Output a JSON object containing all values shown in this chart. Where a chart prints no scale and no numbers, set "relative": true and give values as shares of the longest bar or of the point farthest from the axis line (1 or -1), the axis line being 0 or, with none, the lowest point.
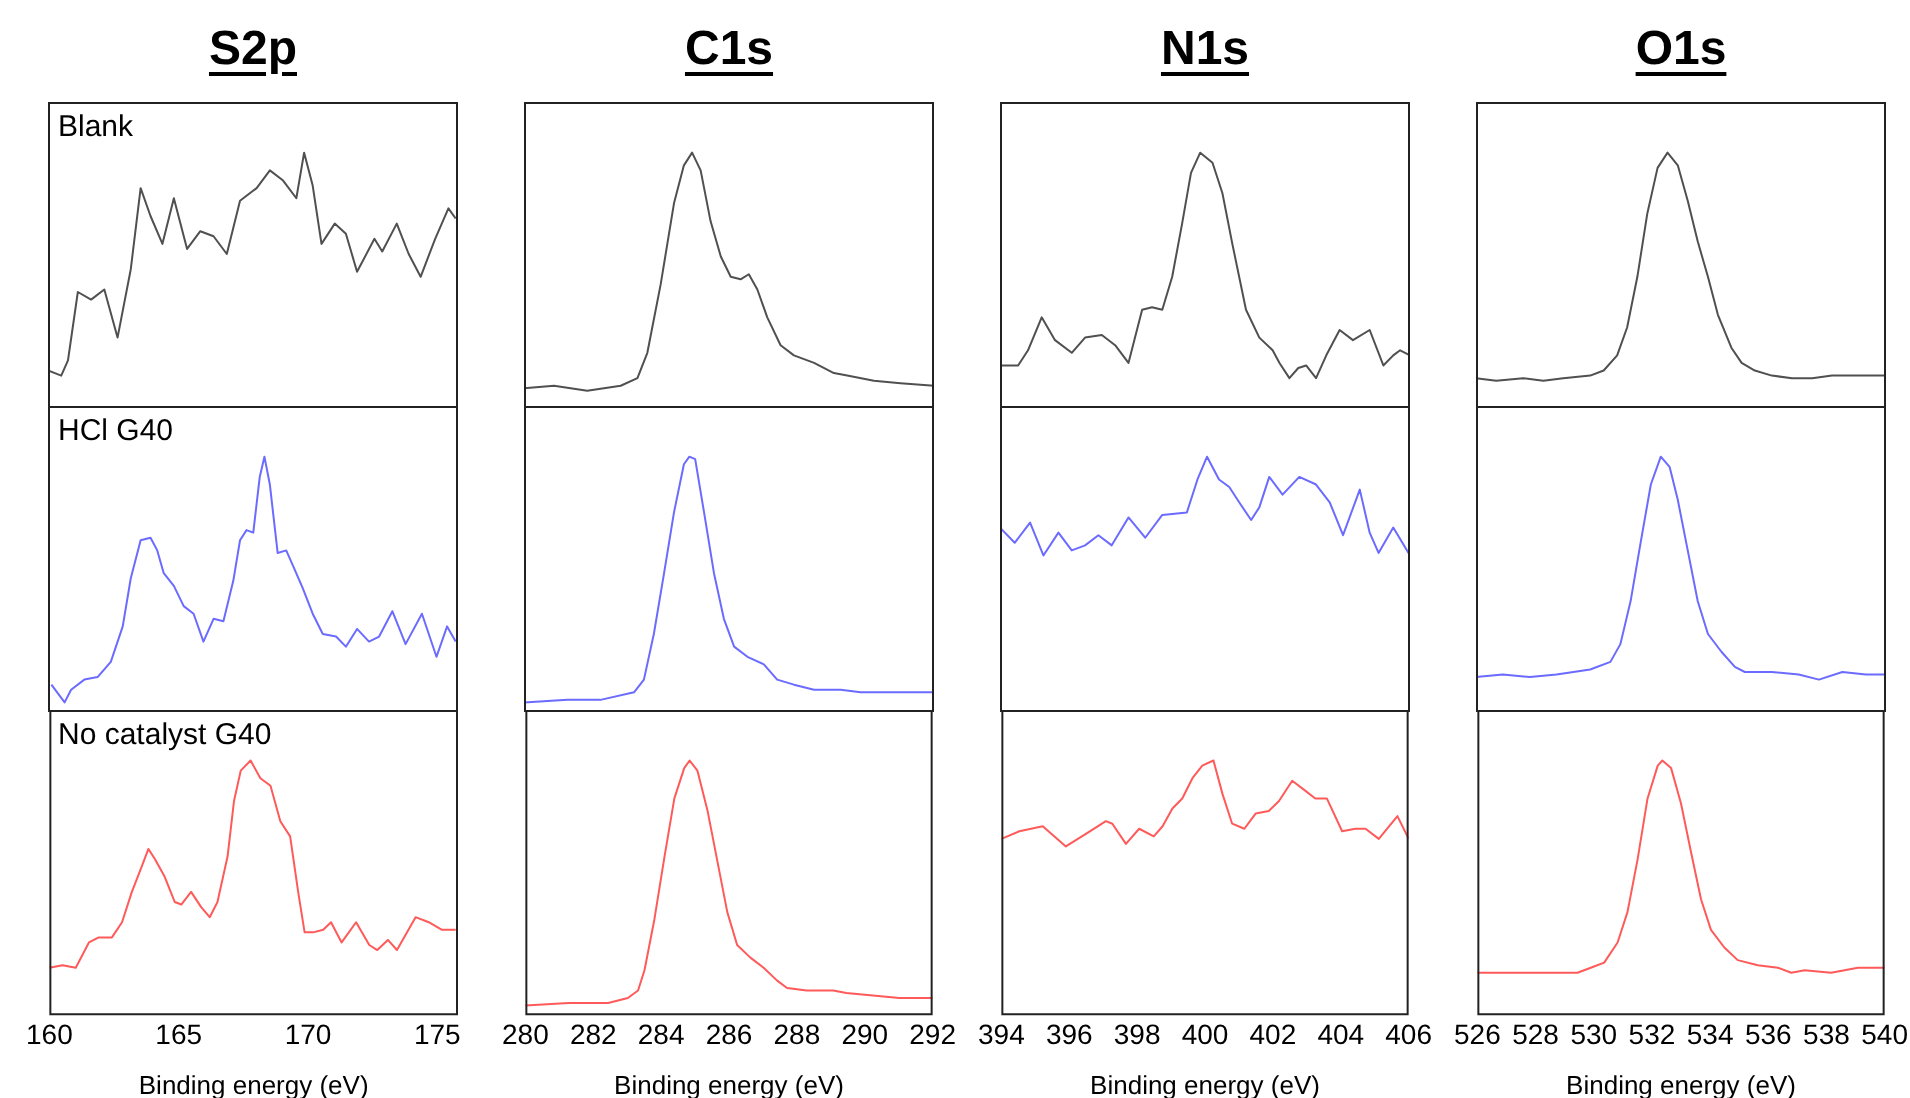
{
  "chart_data": [
    {
      "type": "line",
      "title": "S2p",
      "annotations": [
        "Blank"
      ],
      "relative": true,
      "marker": "none",
      "tick_labels": false,
      "xlim": [
        160,
        175.8
      ],
      "x": [
        160.0,
        160.51,
        160.77,
        161.15,
        161.66,
        162.17,
        162.68,
        163.19,
        163.57,
        163.95,
        164.41,
        164.85,
        165.36,
        165.87,
        166.38,
        166.89,
        167.4,
        168.04,
        168.55,
        169.06,
        169.57,
        169.87,
        170.2,
        170.54,
        171.05,
        171.48,
        171.91,
        172.58,
        172.88,
        173.44,
        173.9,
        174.36,
        174.92,
        175.43,
        175.71
      ],
      "series": [
        {
          "color": "#505050",
          "values": [
            0.14,
            0.12,
            0.18,
            0.45,
            0.42,
            0.46,
            0.27,
            0.54,
            0.86,
            0.75,
            0.64,
            0.82,
            0.62,
            0.69,
            0.67,
            0.6,
            0.81,
            0.86,
            0.93,
            0.89,
            0.82,
            1,
            0.87,
            0.64,
            0.72,
            0.68,
            0.53,
            0.66,
            0.61,
            0.72,
            0.6,
            0.51,
            0.66,
            0.78,
            0.74
          ]
        }
      ]
    },
    {
      "type": "line",
      "title": "C1s",
      "relative": true,
      "marker": "none",
      "tick_labels": false,
      "xlim": [
        280,
        292
      ],
      "x": [
        280,
        280.88,
        281.85,
        282.83,
        283.32,
        283.61,
        284.0,
        284.39,
        284.68,
        284.92,
        285.17,
        285.46,
        285.76,
        286.05,
        286.34,
        286.58,
        286.83,
        287.12,
        287.51,
        287.9,
        288.49,
        289.07,
        289.46,
        290.24,
        291.02,
        292
      ],
      "series": [
        {
          "color": "#505050",
          "values": [
            0.07,
            0.08,
            0.06,
            0.08,
            0.11,
            0.21,
            0.48,
            0.8,
            0.95,
            1,
            0.93,
            0.73,
            0.59,
            0.51,
            0.5,
            0.52,
            0.46,
            0.35,
            0.24,
            0.2,
            0.17,
            0.13,
            0.12,
            0.1,
            0.09,
            0.08
          ]
        }
      ]
    },
    {
      "type": "line",
      "title": "N1s",
      "relative": true,
      "marker": "none",
      "tick_labels": false,
      "xlim": [
        394,
        406
      ],
      "x": [
        394,
        394.53,
        394.82,
        395.22,
        395.61,
        396.1,
        396.49,
        396.98,
        397.37,
        397.76,
        398.16,
        398.45,
        398.75,
        399.04,
        399.33,
        399.59,
        399.86,
        400.22,
        400.51,
        400.8,
        401.2,
        401.59,
        401.98,
        402.18,
        402.47,
        402.73,
        402.96,
        403.25,
        403.55,
        403.94,
        404.33,
        404.82,
        405.22,
        405.51,
        405.71,
        406
      ],
      "series": [
        {
          "color": "#505050",
          "values": [
            0.16,
            0.16,
            0.22,
            0.35,
            0.26,
            0.21,
            0.27,
            0.28,
            0.24,
            0.17,
            0.38,
            0.39,
            0.38,
            0.51,
            0.72,
            0.92,
            1,
            0.96,
            0.84,
            0.64,
            0.38,
            0.27,
            0.22,
            0.17,
            0.11,
            0.15,
            0.16,
            0.11,
            0.2,
            0.3,
            0.26,
            0.3,
            0.16,
            0.2,
            0.22,
            0.2
          ]
        }
      ]
    },
    {
      "type": "line",
      "title": "O1s",
      "relative": true,
      "marker": "none",
      "tick_labels": false,
      "xlim": [
        526,
        540
      ],
      "x": [
        526,
        526.69,
        527.61,
        528.3,
        528.98,
        529.9,
        530.36,
        530.82,
        531.16,
        531.51,
        531.85,
        532.2,
        532.54,
        532.89,
        533.23,
        533.57,
        533.92,
        534.26,
        534.72,
        535.07,
        535.52,
        536.1,
        536.79,
        537.48,
        538.16,
        539.08,
        540
      ],
      "series": [
        {
          "color": "#505050",
          "values": [
            0.11,
            0.1,
            0.11,
            0.1,
            0.11,
            0.12,
            0.14,
            0.2,
            0.31,
            0.51,
            0.76,
            0.94,
            1,
            0.95,
            0.81,
            0.65,
            0.51,
            0.36,
            0.23,
            0.17,
            0.14,
            0.12,
            0.11,
            0.11,
            0.12,
            0.12,
            0.12
          ]
        }
      ]
    },
    {
      "type": "line",
      "annotations": [
        "HCl G40"
      ],
      "relative": true,
      "marker": "none",
      "tick_labels": false,
      "xlim": [
        160,
        175.8
      ],
      "x": [
        160.13,
        160.64,
        160.89,
        161.4,
        161.91,
        162.42,
        162.88,
        163.19,
        163.57,
        163.95,
        164.21,
        164.46,
        164.85,
        165.23,
        165.61,
        165.99,
        166.38,
        166.76,
        167.14,
        167.4,
        167.65,
        167.91,
        168.16,
        168.34,
        168.55,
        168.85,
        169.18,
        169.44,
        169.82,
        170.2,
        170.59,
        171.1,
        171.48,
        171.91,
        172.37,
        172.76,
        173.27,
        173.78,
        174.41,
        174.97,
        175.38,
        175.71
      ],
      "series": [
        {
          "color": "#6b6bff",
          "values": [
            0.1,
            0.03,
            0.08,
            0.12,
            0.13,
            0.19,
            0.33,
            0.52,
            0.67,
            0.68,
            0.63,
            0.54,
            0.49,
            0.41,
            0.38,
            0.27,
            0.36,
            0.35,
            0.51,
            0.67,
            0.71,
            0.7,
            0.92,
            1,
            0.89,
            0.62,
            0.63,
            0.57,
            0.48,
            0.38,
            0.3,
            0.29,
            0.25,
            0.32,
            0.27,
            0.29,
            0.39,
            0.26,
            0.38,
            0.21,
            0.33,
            0.27
          ]
        }
      ]
    },
    {
      "type": "line",
      "relative": true,
      "marker": "none",
      "tick_labels": false,
      "xlim": [
        280,
        292
      ],
      "x": [
        280,
        281.27,
        282.24,
        283.22,
        283.51,
        283.8,
        284.1,
        284.39,
        284.68,
        284.84,
        285.01,
        285.27,
        285.56,
        285.85,
        286.15,
        286.54,
        287.02,
        287.41,
        287.9,
        288.49,
        289.27,
        289.85,
        290.63,
        291.41,
        292
      ],
      "series": [
        {
          "color": "#6b6bff",
          "values": [
            0.03,
            0.04,
            0.04,
            0.07,
            0.12,
            0.3,
            0.54,
            0.78,
            0.97,
            1,
            0.99,
            0.78,
            0.54,
            0.36,
            0.25,
            0.21,
            0.18,
            0.12,
            0.1,
            0.08,
            0.08,
            0.07,
            0.07,
            0.07,
            0.07
          ]
        }
      ]
    },
    {
      "type": "line",
      "relative": true,
      "marker": "none",
      "tick_labels": false,
      "xlim": [
        394,
        406
      ],
      "x": [
        394,
        394.43,
        394.88,
        395.27,
        395.71,
        396.1,
        396.49,
        396.88,
        397.27,
        397.76,
        398.25,
        398.75,
        399.47,
        399.78,
        400.06,
        400.41,
        400.71,
        401.0,
        401.35,
        401.59,
        401.88,
        402.27,
        402.76,
        403.25,
        403.65,
        404.04,
        404.53,
        404.82,
        405.08,
        405.51,
        406
      ],
      "series": [
        {
          "color": "#6b6bff",
          "values": [
            0.72,
            0.66,
            0.74,
            0.61,
            0.7,
            0.63,
            0.65,
            0.69,
            0.65,
            0.76,
            0.68,
            0.77,
            0.78,
            0.91,
            1,
            0.91,
            0.88,
            0.82,
            0.75,
            0.8,
            0.92,
            0.85,
            0.92,
            0.89,
            0.82,
            0.69,
            0.87,
            0.7,
            0.62,
            0.72,
            0.61
          ]
        }
      ]
    },
    {
      "type": "line",
      "relative": true,
      "marker": "none",
      "tick_labels": false,
      "xlim": [
        526,
        540
      ],
      "x": [
        526,
        526.92,
        527.84,
        528.75,
        529.9,
        530.59,
        530.93,
        531.28,
        531.62,
        531.97,
        532.31,
        532.61,
        532.89,
        533.23,
        533.57,
        533.92,
        534.38,
        534.84,
        535.18,
        536.1,
        537.02,
        537.71,
        538.51,
        539.31,
        540
      ],
      "series": [
        {
          "color": "#6b6bff",
          "values": [
            0.13,
            0.14,
            0.13,
            0.14,
            0.16,
            0.19,
            0.26,
            0.43,
            0.66,
            0.89,
            1,
            0.96,
            0.83,
            0.63,
            0.43,
            0.3,
            0.23,
            0.17,
            0.15,
            0.15,
            0.14,
            0.12,
            0.15,
            0.14,
            0.14
          ]
        }
      ]
    },
    {
      "type": "line",
      "annotations": [
        "No catalyst G40"
      ],
      "xlabel": "Binding energy (eV)",
      "relative": true,
      "marker": "none",
      "tick_labels": "x",
      "xlim": [
        160,
        175.8
      ],
      "xticks": [
        160,
        165,
        170,
        175
      ],
      "x": [
        160,
        160.51,
        161.02,
        161.53,
        161.91,
        162.42,
        162.81,
        163.19,
        163.57,
        163.83,
        164.08,
        164.46,
        164.85,
        165.1,
        165.48,
        165.87,
        166.2,
        166.5,
        166.89,
        167.14,
        167.4,
        167.78,
        168.16,
        168.55,
        168.93,
        169.31,
        169.62,
        169.87,
        170.2,
        170.59,
        170.89,
        171.3,
        171.86,
        172.37,
        172.68,
        173.09,
        173.44,
        174.16,
        174.67,
        175.18,
        175.71
      ],
      "series": [
        {
          "color": "#ff5a5a",
          "values": [
            0.18,
            0.19,
            0.18,
            0.28,
            0.3,
            0.3,
            0.36,
            0.48,
            0.58,
            0.65,
            0.61,
            0.54,
            0.44,
            0.43,
            0.48,
            0.42,
            0.38,
            0.44,
            0.62,
            0.84,
            0.96,
            1,
            0.93,
            0.9,
            0.76,
            0.7,
            0.48,
            0.32,
            0.32,
            0.33,
            0.36,
            0.28,
            0.36,
            0.27,
            0.25,
            0.29,
            0.25,
            0.38,
            0.36,
            0.33,
            0.33
          ]
        }
      ]
    },
    {
      "type": "line",
      "xlabel": "Binding energy (eV)",
      "relative": true,
      "marker": "none",
      "tick_labels": "x",
      "xlim": [
        280,
        292
      ],
      "xticks": [
        280,
        282,
        284,
        286,
        288,
        290,
        292
      ],
      "x": [
        280,
        281.27,
        282.44,
        283.02,
        283.32,
        283.51,
        283.8,
        284.1,
        284.39,
        284.68,
        284.84,
        285.07,
        285.37,
        285.66,
        285.95,
        286.24,
        286.63,
        287.02,
        287.41,
        287.71,
        288.29,
        289.07,
        289.46,
        290.24,
        291.02,
        292
      ],
      "series": [
        {
          "color": "#ff5a5a",
          "values": [
            0.03,
            0.04,
            0.04,
            0.06,
            0.09,
            0.17,
            0.37,
            0.62,
            0.85,
            0.97,
            1,
            0.96,
            0.8,
            0.6,
            0.4,
            0.27,
            0.22,
            0.18,
            0.13,
            0.1,
            0.09,
            0.09,
            0.08,
            0.07,
            0.06,
            0.06
          ]
        }
      ]
    },
    {
      "type": "line",
      "xlabel": "Binding energy (eV)",
      "relative": true,
      "marker": "none",
      "tick_labels": "x",
      "xlim": [
        394,
        406
      ],
      "xticks": [
        394,
        396,
        398,
        400,
        402,
        404,
        406
      ],
      "x": [
        394,
        394.53,
        395.22,
        395.9,
        396.49,
        397.08,
        397.27,
        397.67,
        398.06,
        398.49,
        398.75,
        399.04,
        399.33,
        399.63,
        399.92,
        400.25,
        400.51,
        400.8,
        401.16,
        401.49,
        401.88,
        402.18,
        402.57,
        402.96,
        403.25,
        403.59,
        404.04,
        404.43,
        404.73,
        405.12,
        405.67,
        406
      ],
      "series": [
        {
          "color": "#ff5a5a",
          "values": [
            0.69,
            0.72,
            0.74,
            0.66,
            0.71,
            0.76,
            0.75,
            0.67,
            0.73,
            0.7,
            0.74,
            0.81,
            0.85,
            0.93,
            0.98,
            1,
            0.87,
            0.75,
            0.73,
            0.79,
            0.8,
            0.84,
            0.92,
            0.88,
            0.85,
            0.85,
            0.72,
            0.73,
            0.73,
            0.69,
            0.78,
            0.69
          ]
        }
      ]
    },
    {
      "type": "line",
      "xlabel": "Binding energy (eV)",
      "relative": true,
      "marker": "none",
      "tick_labels": "x",
      "xlim": [
        526,
        540
      ],
      "xticks": [
        526,
        528,
        530,
        532,
        534,
        536,
        538,
        540
      ],
      "x": [
        526,
        527.15,
        528.3,
        529.44,
        529.9,
        530.36,
        530.82,
        531.16,
        531.51,
        531.85,
        532.2,
        532.36,
        532.66,
        533.0,
        533.34,
        533.69,
        534.03,
        534.49,
        534.95,
        535.64,
        536.33,
        536.79,
        537.25,
        538.16,
        539.08,
        540
      ],
      "series": [
        {
          "color": "#ff5a5a",
          "values": [
            0.16,
            0.16,
            0.16,
            0.16,
            0.18,
            0.2,
            0.28,
            0.4,
            0.61,
            0.85,
            0.98,
            1,
            0.97,
            0.83,
            0.64,
            0.45,
            0.33,
            0.26,
            0.21,
            0.19,
            0.18,
            0.16,
            0.17,
            0.16,
            0.18,
            0.18
          ]
        }
      ]
    }
  ]
}
